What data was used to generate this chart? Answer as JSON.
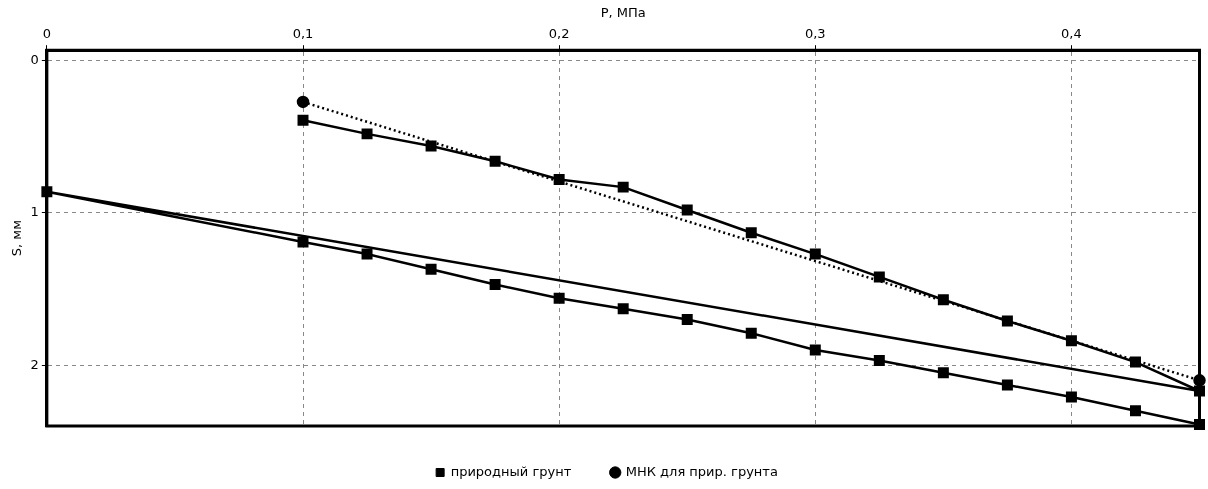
{
  "chart_data": {
    "type": "line",
    "xlabel": "P, МПа",
    "ylabel": "S, мм",
    "xlim": [
      0,
      0.45
    ],
    "xticks": [
      0,
      {
        "value": 0.1,
        "label": "0,1"
      },
      {
        "value": 0.2,
        "label": "0,2"
      },
      {
        "value": 0.3,
        "label": "0,3"
      },
      {
        "value": 0.4,
        "label": "0,4"
      }
    ],
    "ylim": [
      2.4,
      -0.07
    ],
    "yticks": [
      0,
      1,
      2
    ],
    "grid": true,
    "legend": "bottom",
    "series": [
      {
        "name": "природный грунт",
        "color": "#000000",
        "marker": "square",
        "line_style": "solid",
        "x": [
          0.1,
          0.125,
          0.15,
          0.175,
          0.2,
          0.225,
          0.25,
          0.275,
          0.3,
          0.325,
          0.35,
          0.375,
          0.4,
          0.425,
          0.45,
          0,
          0.1,
          0.125,
          0.15,
          0.175,
          0.2,
          0.225,
          0.25,
          0.275,
          0.3,
          0.325,
          0.35,
          0.375,
          0.4,
          0.425,
          0.45
        ],
        "values": [
          0.39,
          0.48,
          0.56,
          0.66,
          0.78,
          0.83,
          0.98,
          1.13,
          1.27,
          1.42,
          1.57,
          1.71,
          1.84,
          1.98,
          2.17,
          0.86,
          1.19,
          1.27,
          1.37,
          1.47,
          1.56,
          1.63,
          1.7,
          1.79,
          1.9,
          1.97,
          2.05,
          2.13,
          2.21,
          2.3,
          2.39
        ]
      },
      {
        "name": "МНК для прир. грунта",
        "color": "#000000",
        "marker": "circle",
        "line_style": "dotted",
        "x": [
          0.1,
          0.45
        ],
        "values": [
          0.27,
          2.1
        ]
      }
    ]
  }
}
